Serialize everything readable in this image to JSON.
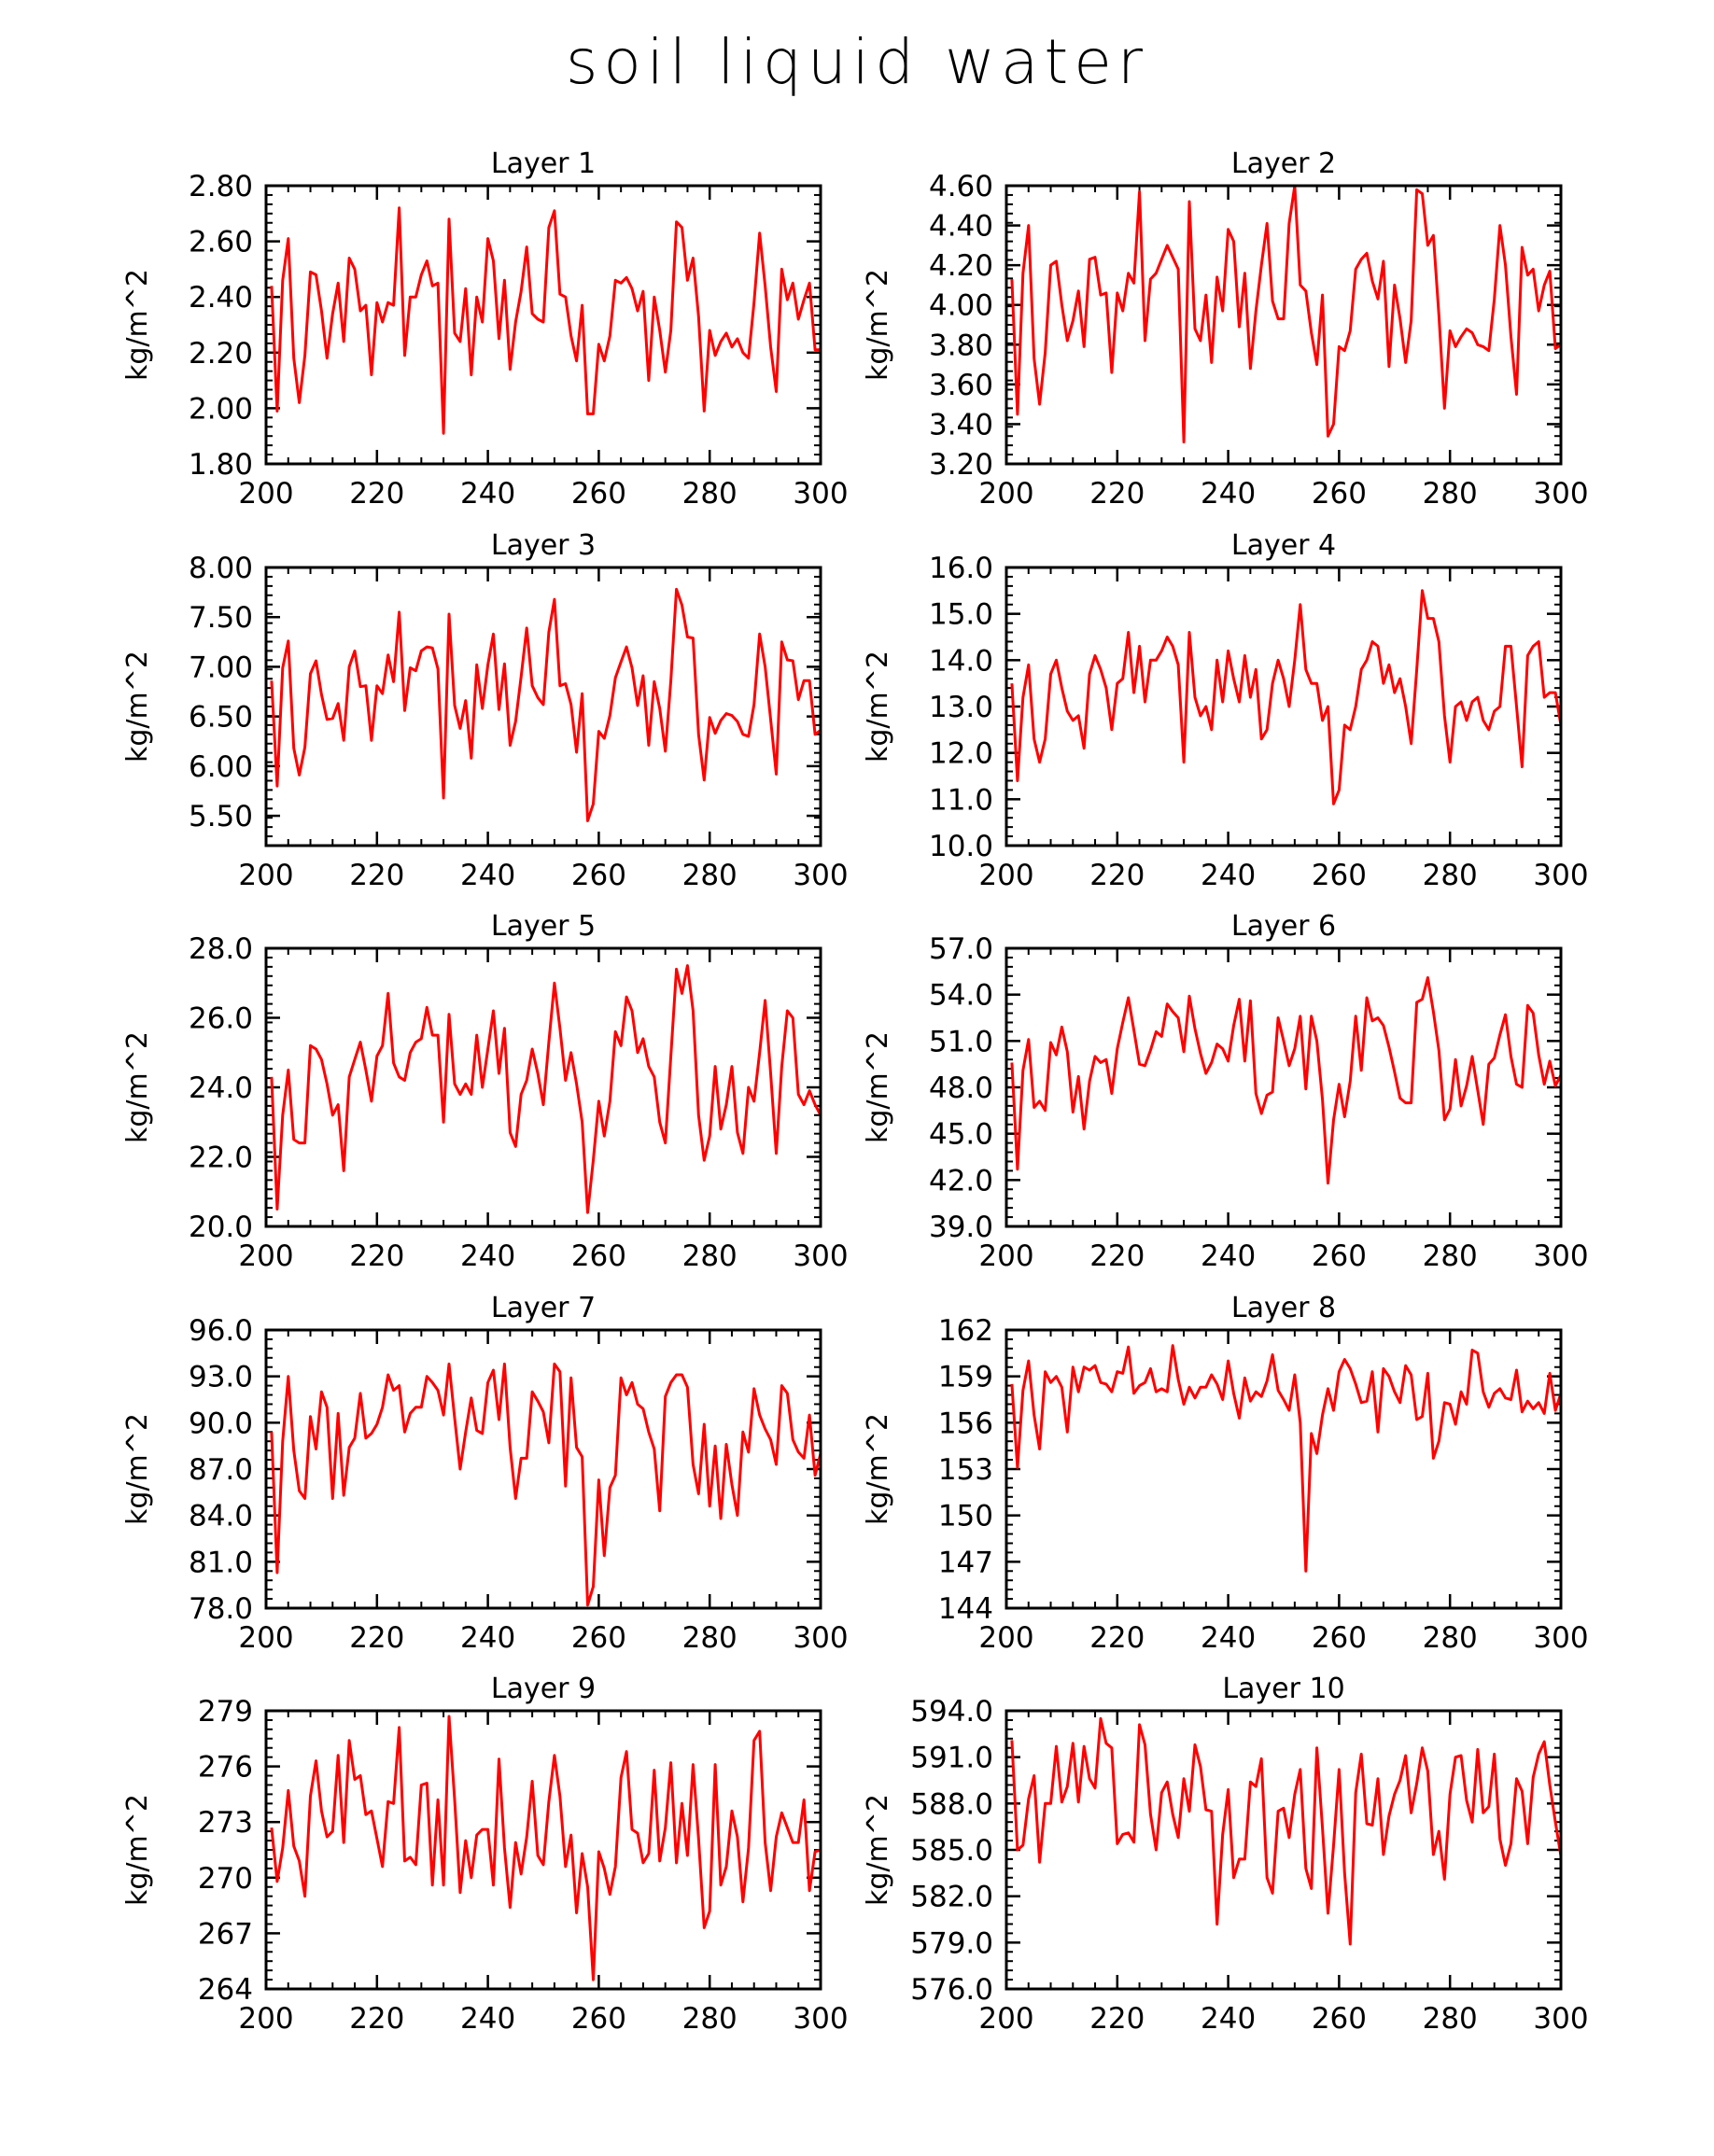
{
  "title": "soil liquid water",
  "footer_label": "",
  "line_color": "#ff0000",
  "chart_data": [
    {
      "type": "line",
      "title": "Layer 1",
      "ylabel": "kg/m^2",
      "xlim": [
        200,
        300
      ],
      "ylim": [
        1.8,
        2.8
      ],
      "xticks": [
        "200",
        "220",
        "240",
        "260",
        "280",
        "300"
      ],
      "yticks": [
        "1.80",
        "2.00",
        "2.20",
        "2.40",
        "2.60",
        "2.80"
      ],
      "x_start": 201,
      "values": [
        2.44,
        1.99,
        2.46,
        2.61,
        2.18,
        2.02,
        2.19,
        2.49,
        2.48,
        2.35,
        2.18,
        2.34,
        2.45,
        2.24,
        2.54,
        2.5,
        2.35,
        2.37,
        2.12,
        2.38,
        2.31,
        2.38,
        2.37,
        2.72,
        2.19,
        2.4,
        2.4,
        2.48,
        2.53,
        2.44,
        2.45,
        1.91,
        2.68,
        2.27,
        2.24,
        2.43,
        2.12,
        2.4,
        2.31,
        2.61,
        2.53,
        2.25,
        2.46,
        2.14,
        2.31,
        2.42,
        2.58,
        2.34,
        2.32,
        2.31,
        2.65,
        2.71,
        2.41,
        2.4,
        2.26,
        2.17,
        2.37,
        1.98,
        1.98,
        2.23,
        2.17,
        2.26,
        2.46,
        2.45,
        2.47,
        2.43,
        2.35,
        2.42,
        2.1,
        2.4,
        2.28,
        2.13,
        2.28,
        2.67,
        2.65,
        2.46,
        2.54,
        2.33,
        1.99,
        2.28,
        2.19,
        2.24,
        2.27,
        2.22,
        2.25,
        2.2,
        2.18,
        2.38,
        2.63,
        2.44,
        2.22,
        2.06,
        2.5,
        2.39,
        2.45,
        2.32,
        2.39,
        2.45,
        2.21,
        2.21
      ]
    },
    {
      "type": "line",
      "title": "Layer 2",
      "ylabel": "kg/m^2",
      "xlim": [
        200,
        300
      ],
      "ylim": [
        3.2,
        4.6
      ],
      "xticks": [
        "200",
        "220",
        "240",
        "260",
        "280",
        "300"
      ],
      "yticks": [
        "3.20",
        "3.40",
        "3.60",
        "3.80",
        "4.00",
        "4.20",
        "4.40",
        "4.60"
      ],
      "x_start": 201,
      "values": [
        4.13,
        3.45,
        4.16,
        4.4,
        3.73,
        3.5,
        3.76,
        4.2,
        4.22,
        4.0,
        3.82,
        3.92,
        4.07,
        3.79,
        4.23,
        4.24,
        4.05,
        4.06,
        3.66,
        4.06,
        3.97,
        4.16,
        4.11,
        4.57,
        3.82,
        4.13,
        4.16,
        4.23,
        4.3,
        4.24,
        4.18,
        3.31,
        4.52,
        3.88,
        3.82,
        4.05,
        3.71,
        4.14,
        3.97,
        4.38,
        4.32,
        3.89,
        4.16,
        3.68,
        3.97,
        4.2,
        4.41,
        4.02,
        3.93,
        3.93,
        4.41,
        4.6,
        4.1,
        4.07,
        3.86,
        3.7,
        4.05,
        3.34,
        3.4,
        3.79,
        3.77,
        3.87,
        4.18,
        4.23,
        4.26,
        4.12,
        4.03,
        4.22,
        3.69,
        4.1,
        3.93,
        3.71,
        3.92,
        4.58,
        4.56,
        4.3,
        4.35,
        3.95,
        3.48,
        3.87,
        3.79,
        3.84,
        3.88,
        3.86,
        3.8,
        3.79,
        3.77,
        4.03,
        4.4,
        4.2,
        3.84,
        3.55,
        4.29,
        4.15,
        4.18,
        3.97,
        4.1,
        4.17,
        3.78,
        3.8
      ]
    },
    {
      "type": "line",
      "title": "Layer 3",
      "ylabel": "kg/m^2",
      "xlim": [
        200,
        300
      ],
      "ylim": [
        5.2,
        8.0
      ],
      "xticks": [
        "200",
        "220",
        "240",
        "260",
        "280",
        "300"
      ],
      "yticks": [
        "5.50",
        "6.00",
        "6.50",
        "7.00",
        "7.50",
        "8.00"
      ],
      "x_start": 201,
      "values": [
        6.86,
        5.8,
        6.99,
        7.26,
        6.18,
        5.91,
        6.19,
        6.93,
        7.06,
        6.72,
        6.47,
        6.48,
        6.63,
        6.26,
        7.0,
        7.16,
        6.8,
        6.81,
        6.26,
        6.81,
        6.73,
        7.12,
        6.85,
        7.55,
        6.56,
        6.99,
        6.96,
        7.16,
        7.2,
        7.19,
        6.98,
        5.68,
        7.53,
        6.61,
        6.38,
        6.66,
        6.08,
        7.02,
        6.58,
        7.02,
        7.33,
        6.57,
        7.03,
        6.21,
        6.45,
        6.9,
        7.39,
        6.81,
        6.69,
        6.62,
        7.35,
        7.68,
        6.81,
        6.83,
        6.62,
        6.14,
        6.73,
        5.45,
        5.62,
        6.35,
        6.28,
        6.51,
        6.89,
        7.05,
        7.2,
        6.99,
        6.61,
        6.91,
        6.21,
        6.85,
        6.58,
        6.15,
        6.86,
        7.78,
        7.62,
        7.3,
        7.29,
        6.32,
        5.86,
        6.49,
        6.33,
        6.46,
        6.53,
        6.51,
        6.45,
        6.32,
        6.3,
        6.62,
        7.33,
        7.0,
        6.47,
        5.92,
        7.25,
        7.07,
        7.06,
        6.67,
        6.86,
        6.86,
        6.32,
        6.36
      ]
    },
    {
      "type": "line",
      "title": "Layer 4",
      "ylabel": "kg/m^2",
      "xlim": [
        200,
        300
      ],
      "ylim": [
        10.0,
        16.0
      ],
      "xticks": [
        "200",
        "220",
        "240",
        "260",
        "280",
        "300"
      ],
      "yticks": [
        "10.0",
        "11.0",
        "12.0",
        "13.0",
        "14.0",
        "15.0",
        "16.0"
      ],
      "x_start": 201,
      "values": [
        13.5,
        11.4,
        13.2,
        13.9,
        12.3,
        11.8,
        12.3,
        13.7,
        14.0,
        13.4,
        12.9,
        12.7,
        12.8,
        12.1,
        13.7,
        14.1,
        13.8,
        13.4,
        12.5,
        13.5,
        13.6,
        14.6,
        13.3,
        14.3,
        13.1,
        14.0,
        14.0,
        14.2,
        14.5,
        14.3,
        13.9,
        11.8,
        14.6,
        13.2,
        12.8,
        13.0,
        12.5,
        14.0,
        13.1,
        14.2,
        13.6,
        13.1,
        14.1,
        13.2,
        13.8,
        12.3,
        12.5,
        13.5,
        14.0,
        13.6,
        13.0,
        14.0,
        15.2,
        13.8,
        13.5,
        13.5,
        12.7,
        13.0,
        10.9,
        11.2,
        12.6,
        12.5,
        13.0,
        13.8,
        14.0,
        14.4,
        14.3,
        13.5,
        13.9,
        13.3,
        13.6,
        13.0,
        12.2,
        13.8,
        15.5,
        14.9,
        14.9,
        14.4,
        12.8,
        11.8,
        13.0,
        13.1,
        12.7,
        13.1,
        13.2,
        12.7,
        12.5,
        12.9,
        13.0,
        14.3,
        14.3,
        13.0,
        11.7,
        14.1,
        14.3,
        14.4,
        13.2,
        13.3,
        13.3,
        12.6
      ]
    },
    {
      "type": "line",
      "title": "Layer 5",
      "ylabel": "kg/m^2",
      "xlim": [
        200,
        300
      ],
      "ylim": [
        20.0,
        28.0
      ],
      "xticks": [
        "200",
        "220",
        "240",
        "260",
        "280",
        "300"
      ],
      "yticks": [
        "20.0",
        "22.0",
        "24.0",
        "26.0",
        "28.0"
      ],
      "x_start": 201,
      "values": [
        24.3,
        20.5,
        23.2,
        24.5,
        22.5,
        22.4,
        22.4,
        25.2,
        25.1,
        24.8,
        24.1,
        23.2,
        23.5,
        21.6,
        24.3,
        24.8,
        25.3,
        24.5,
        23.6,
        24.9,
        25.2,
        26.7,
        24.7,
        24.3,
        24.2,
        25.0,
        25.3,
        25.4,
        26.3,
        25.5,
        25.5,
        23.0,
        26.1,
        24.1,
        23.8,
        24.1,
        23.8,
        25.5,
        24.0,
        25.1,
        26.2,
        24.4,
        25.7,
        22.7,
        22.3,
        23.8,
        24.2,
        25.1,
        24.4,
        23.5,
        25.3,
        27.0,
        25.7,
        24.2,
        25.0,
        24.1,
        23.0,
        20.4,
        21.9,
        23.6,
        22.6,
        23.6,
        25.6,
        25.2,
        26.6,
        26.2,
        25.0,
        25.4,
        24.6,
        24.3,
        23.0,
        22.4,
        24.9,
        27.4,
        26.7,
        27.5,
        26.2,
        23.2,
        21.9,
        22.6,
        24.6,
        22.8,
        23.5,
        24.6,
        22.7,
        22.1,
        24.0,
        23.6,
        25.0,
        26.5,
        24.4,
        22.1,
        24.6,
        26.2,
        26.0,
        23.8,
        23.5,
        23.9,
        23.5,
        23.2
      ]
    },
    {
      "type": "line",
      "title": "Layer 6",
      "ylabel": "kg/m^2",
      "xlim": [
        200,
        300
      ],
      "ylim": [
        39.0,
        57.0
      ],
      "xticks": [
        "200",
        "220",
        "240",
        "260",
        "280",
        "300"
      ],
      "yticks": [
        "39.0",
        "42.0",
        "45.0",
        "48.0",
        "51.0",
        "54.0",
        "57.0"
      ],
      "x_start": 201,
      "values": [
        49.6,
        42.7,
        49.1,
        51.1,
        46.7,
        47.1,
        46.5,
        50.9,
        50.1,
        51.9,
        50.3,
        46.4,
        48.7,
        45.3,
        48.4,
        50.0,
        49.6,
        49.8,
        47.6,
        50.5,
        52.2,
        53.8,
        51.7,
        49.5,
        49.4,
        50.4,
        51.6,
        51.3,
        53.4,
        52.9,
        52.5,
        50.3,
        53.9,
        51.8,
        50.2,
        48.9,
        49.6,
        50.8,
        50.5,
        49.7,
        52.0,
        53.7,
        49.7,
        53.6,
        47.6,
        46.3,
        47.5,
        47.7,
        52.5,
        51.0,
        49.4,
        50.5,
        52.6,
        47.9,
        52.6,
        51.0,
        47.2,
        41.8,
        45.9,
        48.2,
        46.1,
        48.4,
        52.6,
        49.1,
        53.8,
        52.3,
        52.5,
        52.0,
        50.6,
        49.0,
        47.3,
        47.0,
        47.0,
        53.5,
        53.7,
        55.1,
        52.9,
        50.4,
        45.9,
        46.6,
        49.8,
        46.8,
        48.1,
        50.0,
        47.8,
        45.6,
        49.5,
        49.9,
        51.4,
        52.7,
        50.0,
        48.2,
        48.0,
        53.3,
        52.8,
        50.1,
        48.2,
        49.7,
        48.1,
        48.8
      ]
    },
    {
      "type": "line",
      "title": "Layer 7",
      "ylabel": "kg/m^2",
      "xlim": [
        200,
        300
      ],
      "ylim": [
        78.0,
        96.0
      ],
      "xticks": [
        "200",
        "220",
        "240",
        "260",
        "280",
        "300"
      ],
      "yticks": [
        "78.0",
        "81.0",
        "84.0",
        "87.0",
        "90.0",
        "93.0",
        "96.0"
      ],
      "x_start": 201,
      "values": [
        89.4,
        80.3,
        88.8,
        93.0,
        88.2,
        85.6,
        85.1,
        90.4,
        88.3,
        92.0,
        91.0,
        85.1,
        90.6,
        85.3,
        88.4,
        89.0,
        91.9,
        89.0,
        89.3,
        89.9,
        91.0,
        93.1,
        92.1,
        92.4,
        89.4,
        90.6,
        91.0,
        91.0,
        93.0,
        92.6,
        92.1,
        90.5,
        93.8,
        90.3,
        87.0,
        89.4,
        91.6,
        89.5,
        89.3,
        92.6,
        93.4,
        90.2,
        93.8,
        88.4,
        85.1,
        87.7,
        87.7,
        92.0,
        91.4,
        90.7,
        88.7,
        93.8,
        93.3,
        85.9,
        92.9,
        88.4,
        87.8,
        78.2,
        79.4,
        86.3,
        81.4,
        85.8,
        86.6,
        92.9,
        91.8,
        92.6,
        91.2,
        90.9,
        89.4,
        88.3,
        84.3,
        91.7,
        92.6,
        93.1,
        93.1,
        92.3,
        87.3,
        85.4,
        89.9,
        84.6,
        88.5,
        83.8,
        88.6,
        86.0,
        84.0,
        89.4,
        88.1,
        92.2,
        90.5,
        89.6,
        88.9,
        87.3,
        92.4,
        91.9,
        88.9,
        88.1,
        87.7,
        90.5,
        86.6,
        88.0
      ]
    },
    {
      "type": "line",
      "title": "Layer 8",
      "ylabel": "kg/m^2",
      "xlim": [
        200,
        300
      ],
      "ylim": [
        144,
        162
      ],
      "xticks": [
        "200",
        "220",
        "240",
        "260",
        "280",
        "300"
      ],
      "yticks": [
        "144",
        "147",
        "150",
        "153",
        "156",
        "159",
        "162"
      ],
      "x_start": 201,
      "values": [
        158.5,
        153.1,
        158.1,
        160.0,
        156.5,
        154.3,
        159.3,
        158.6,
        159.0,
        158.3,
        155.4,
        159.6,
        158.0,
        159.6,
        159.4,
        159.7,
        158.6,
        158.5,
        158.0,
        159.3,
        159.2,
        160.9,
        157.9,
        158.4,
        158.6,
        159.5,
        158.0,
        158.2,
        158.0,
        161.0,
        158.8,
        157.2,
        158.3,
        157.6,
        158.3,
        158.3,
        159.1,
        158.5,
        157.5,
        160.0,
        157.9,
        156.3,
        158.9,
        157.4,
        158.0,
        157.7,
        158.7,
        160.4,
        158.1,
        157.5,
        156.8,
        159.1,
        156.0,
        146.4,
        155.3,
        154.0,
        156.5,
        158.2,
        156.8,
        159.3,
        160.1,
        159.5,
        158.5,
        157.3,
        157.4,
        159.3,
        155.4,
        159.5,
        159.0,
        158.0,
        157.3,
        159.7,
        159.1,
        156.2,
        156.4,
        159.2,
        153.7,
        154.8,
        157.3,
        157.2,
        155.9,
        158.0,
        157.2,
        160.7,
        160.5,
        158.0,
        157.0,
        157.9,
        158.2,
        157.6,
        157.5,
        159.4,
        156.7,
        157.4,
        156.9,
        157.3,
        156.6,
        159.2,
        156.8,
        157.9
      ]
    },
    {
      "type": "line",
      "title": "Layer 9",
      "ylabel": "kg/m^2",
      "xlim": [
        200,
        300
      ],
      "ylim": [
        264,
        279
      ],
      "xticks": [
        "200",
        "220",
        "240",
        "260",
        "280",
        "300"
      ],
      "yticks": [
        "264",
        "267",
        "270",
        "273",
        "276",
        "279"
      ],
      "x_start": 201,
      "values": [
        272.7,
        269.8,
        271.6,
        274.7,
        271.7,
        270.9,
        269.0,
        274.4,
        276.3,
        273.6,
        272.2,
        272.5,
        276.6,
        271.9,
        277.4,
        275.3,
        275.5,
        273.4,
        273.6,
        272.1,
        270.6,
        274.1,
        274.0,
        278.1,
        270.9,
        271.1,
        270.7,
        275.0,
        275.1,
        269.6,
        274.2,
        269.6,
        278.7,
        274.2,
        269.2,
        272.0,
        270.0,
        272.3,
        272.6,
        272.6,
        269.6,
        276.4,
        271.6,
        268.4,
        271.9,
        270.2,
        272.2,
        275.2,
        271.2,
        270.7,
        274.1,
        276.6,
        274.4,
        270.6,
        272.3,
        268.1,
        271.3,
        269.5,
        264.5,
        271.4,
        270.5,
        269.1,
        270.6,
        275.4,
        276.8,
        272.6,
        272.4,
        270.8,
        271.3,
        275.8,
        270.9,
        272.7,
        276.2,
        270.8,
        274.0,
        271.2,
        276.1,
        272.1,
        267.3,
        268.2,
        276.1,
        269.6,
        270.6,
        273.6,
        272.2,
        268.7,
        271.6,
        277.4,
        277.9,
        271.9,
        269.3,
        272.2,
        273.5,
        272.7,
        271.9,
        271.9,
        274.2,
        269.3,
        271.4,
        271.5
      ]
    },
    {
      "type": "line",
      "title": "Layer 10",
      "ylabel": "kg/m^2",
      "xlim": [
        200,
        300
      ],
      "ylim": [
        576.0,
        594.0
      ],
      "xticks": [
        "200",
        "220",
        "240",
        "260",
        "280",
        "300"
      ],
      "yticks": [
        "576.0",
        "579.0",
        "582.0",
        "585.0",
        "588.0",
        "591.0",
        "594.0"
      ],
      "x_start": 201,
      "values": [
        592.1,
        585.0,
        585.3,
        588.3,
        589.8,
        584.2,
        588.0,
        588.0,
        591.7,
        588.1,
        589.1,
        591.9,
        588.1,
        591.7,
        589.6,
        589.0,
        593.5,
        591.9,
        591.6,
        585.4,
        586.0,
        586.1,
        585.5,
        593.1,
        591.8,
        587.3,
        585.0,
        588.7,
        589.4,
        587.3,
        585.8,
        589.6,
        587.5,
        591.8,
        590.4,
        587.6,
        587.5,
        580.2,
        586.0,
        588.9,
        583.2,
        584.4,
        584.4,
        589.4,
        589.1,
        590.9,
        583.2,
        582.2,
        587.5,
        587.7,
        585.8,
        588.6,
        590.2,
        583.8,
        582.5,
        591.6,
        586.4,
        580.9,
        585.3,
        590.2,
        583.5,
        578.9,
        588.7,
        591.2,
        586.7,
        586.6,
        589.6,
        584.7,
        587.2,
        588.6,
        589.5,
        591.1,
        587.4,
        589.3,
        591.6,
        590.1,
        584.7,
        586.2,
        583.1,
        588.6,
        591.0,
        591.1,
        588.2,
        586.8,
        591.5,
        587.4,
        587.8,
        591.2,
        585.7,
        584.0,
        585.4,
        589.6,
        588.8,
        585.4,
        589.7,
        591.2,
        592.0,
        589.2,
        586.8,
        584.6
      ]
    }
  ]
}
